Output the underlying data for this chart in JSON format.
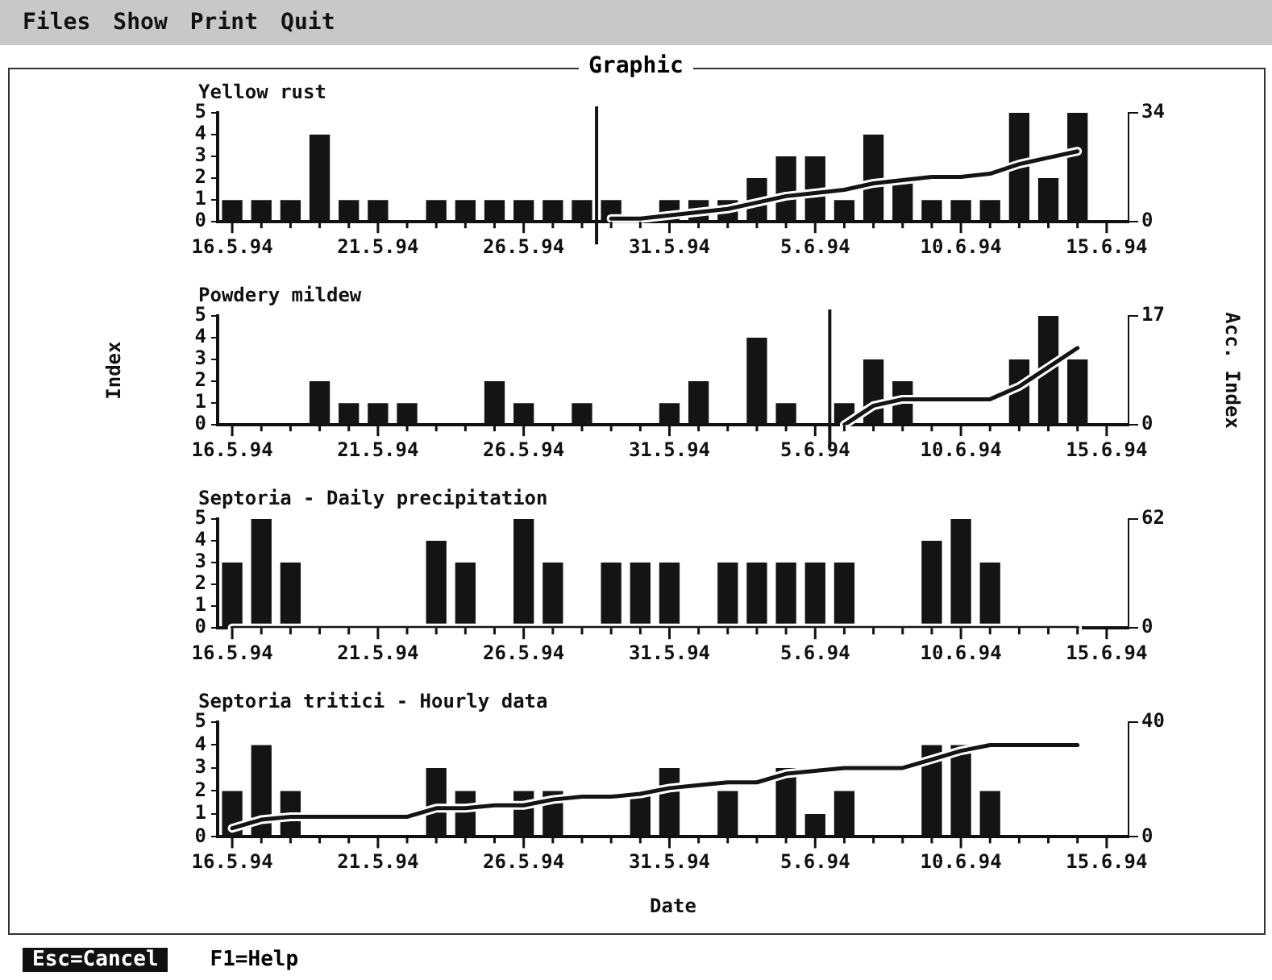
{
  "chart_data": [
    {
      "type": "bar",
      "title": "Yellow rust",
      "annotations": [
        "Files",
        "Show",
        "Print",
        "Quit",
        "Graphic"
      ],
      "x": [
        "1994-05-16",
        "1994-05-17",
        "1994-05-18",
        "1994-05-19",
        "1994-05-20",
        "1994-05-21",
        "1994-05-22",
        "1994-05-23",
        "1994-05-24",
        "1994-05-25",
        "1994-05-26",
        "1994-05-27",
        "1994-05-28",
        "1994-05-29",
        "1994-05-30",
        "1994-05-31",
        "1994-06-01",
        "1994-06-02",
        "1994-06-03",
        "1994-06-04",
        "1994-06-05",
        "1994-06-06",
        "1994-06-07",
        "1994-06-08",
        "1994-06-09",
        "1994-06-10",
        "1994-06-11",
        "1994-06-12",
        "1994-06-13",
        "1994-06-14",
        "1994-06-15"
      ],
      "series": [
        {
          "color": "#141414",
          "values": [
            1,
            1,
            1,
            4,
            1,
            1,
            0,
            1,
            1,
            1,
            1,
            1,
            1,
            1,
            0,
            1,
            1,
            1,
            2,
            3,
            3,
            1,
            4,
            2,
            1,
            1,
            1,
            5,
            2,
            5,
            0
          ]
        },
        {
          "type": "line",
          "axis": "y2",
          "color": "#141414",
          "values": [
            null,
            null,
            null,
            null,
            null,
            null,
            null,
            null,
            null,
            null,
            null,
            null,
            null,
            1,
            1,
            2,
            3,
            4,
            6,
            8,
            9,
            10,
            12,
            13,
            14,
            14,
            15,
            18,
            20,
            22,
            null
          ]
        }
      ],
      "xlim": [
        "1994-05-15T12:00",
        "1994-06-15T18:00"
      ],
      "xticks": [
        {
          "value": "1994-05-16",
          "label": "16.5.94"
        },
        {
          "value": "1994-05-17",
          "label": null
        },
        {
          "value": "1994-05-18",
          "label": null
        },
        {
          "value": "1994-05-19",
          "label": null
        },
        {
          "value": "1994-05-20",
          "label": null
        },
        {
          "value": "1994-05-21",
          "label": "21.5.94"
        },
        {
          "value": "1994-05-22",
          "label": null
        },
        {
          "value": "1994-05-23",
          "label": null
        },
        {
          "value": "1994-05-24",
          "label": null
        },
        {
          "value": "1994-05-25",
          "label": null
        },
        {
          "value": "1994-05-26",
          "label": "26.5.94"
        },
        {
          "value": "1994-05-27",
          "label": null
        },
        {
          "value": "1994-05-28",
          "label": null
        },
        {
          "value": "1994-05-29",
          "label": null
        },
        {
          "value": "1994-05-30",
          "label": null
        },
        {
          "value": "1994-05-31",
          "label": "31.5.94"
        },
        {
          "value": "1994-06-01",
          "label": null
        },
        {
          "value": "1994-06-02",
          "label": null
        },
        {
          "value": "1994-06-03",
          "label": null
        },
        {
          "value": "1994-06-04",
          "label": null
        },
        {
          "value": "1994-06-05",
          "label": "5.6.94"
        },
        {
          "value": "1994-06-06",
          "label": null
        },
        {
          "value": "1994-06-07",
          "label": null
        },
        {
          "value": "1994-06-08",
          "label": null
        },
        {
          "value": "1994-06-09",
          "label": null
        },
        {
          "value": "1994-06-10",
          "label": "10.6.94"
        },
        {
          "value": "1994-06-11",
          "label": null
        },
        {
          "value": "1994-06-12",
          "label": null
        },
        {
          "value": "1994-06-13",
          "label": null
        },
        {
          "value": "1994-06-14",
          "label": null
        },
        {
          "value": "1994-06-15",
          "label": "15.6.94"
        }
      ],
      "ylim": [
        0,
        5
      ],
      "yticks": [
        0,
        1,
        2,
        3,
        4,
        5
      ],
      "y2lim": [
        0,
        34
      ],
      "y2ticks": [
        0,
        34
      ],
      "ref_lines": [
        {
          "axis": "x",
          "value": "1994-05-28T12:00",
          "color": "#141414"
        }
      ],
      "grid": false,
      "legend": false,
      "marker": "none"
    },
    {
      "type": "bar",
      "title": "Powdery mildew",
      "ylabel": "Index",
      "y2label": "Acc. Index",
      "x": [
        "1994-05-16",
        "1994-05-17",
        "1994-05-18",
        "1994-05-19",
        "1994-05-20",
        "1994-05-21",
        "1994-05-22",
        "1994-05-23",
        "1994-05-24",
        "1994-05-25",
        "1994-05-26",
        "1994-05-27",
        "1994-05-28",
        "1994-05-29",
        "1994-05-30",
        "1994-05-31",
        "1994-06-01",
        "1994-06-02",
        "1994-06-03",
        "1994-06-04",
        "1994-06-05",
        "1994-06-06",
        "1994-06-07",
        "1994-06-08",
        "1994-06-09",
        "1994-06-10",
        "1994-06-11",
        "1994-06-12",
        "1994-06-13",
        "1994-06-14",
        "1994-06-15"
      ],
      "series": [
        {
          "color": "#141414",
          "values": [
            0,
            0,
            0,
            2,
            1,
            1,
            1,
            0,
            0,
            2,
            1,
            0,
            1,
            0,
            0,
            1,
            2,
            0,
            4,
            1,
            0,
            1,
            3,
            2,
            0,
            0,
            0,
            3,
            5,
            3,
            0
          ]
        },
        {
          "type": "line",
          "axis": "y2",
          "color": "#141414",
          "values": [
            null,
            null,
            null,
            null,
            null,
            null,
            null,
            null,
            null,
            null,
            null,
            null,
            null,
            null,
            null,
            null,
            null,
            null,
            null,
            null,
            null,
            0,
            3,
            4,
            4,
            4,
            4,
            6,
            9,
            12,
            null
          ]
        }
      ],
      "xlim": [
        "1994-05-15T12:00",
        "1994-06-15T18:00"
      ],
      "xticks": [
        {
          "value": "1994-05-16",
          "label": "16.5.94"
        },
        {
          "value": "1994-05-17",
          "label": null
        },
        {
          "value": "1994-05-18",
          "label": null
        },
        {
          "value": "1994-05-19",
          "label": null
        },
        {
          "value": "1994-05-20",
          "label": null
        },
        {
          "value": "1994-05-21",
          "label": "21.5.94"
        },
        {
          "value": "1994-05-22",
          "label": null
        },
        {
          "value": "1994-05-23",
          "label": null
        },
        {
          "value": "1994-05-24",
          "label": null
        },
        {
          "value": "1994-05-25",
          "label": null
        },
        {
          "value": "1994-05-26",
          "label": "26.5.94"
        },
        {
          "value": "1994-05-27",
          "label": null
        },
        {
          "value": "1994-05-28",
          "label": null
        },
        {
          "value": "1994-05-29",
          "label": null
        },
        {
          "value": "1994-05-30",
          "label": null
        },
        {
          "value": "1994-05-31",
          "label": "31.5.94"
        },
        {
          "value": "1994-06-01",
          "label": null
        },
        {
          "value": "1994-06-02",
          "label": null
        },
        {
          "value": "1994-06-03",
          "label": null
        },
        {
          "value": "1994-06-04",
          "label": null
        },
        {
          "value": "1994-06-05",
          "label": "5.6.94"
        },
        {
          "value": "1994-06-06",
          "label": null
        },
        {
          "value": "1994-06-07",
          "label": null
        },
        {
          "value": "1994-06-08",
          "label": null
        },
        {
          "value": "1994-06-09",
          "label": null
        },
        {
          "value": "1994-06-10",
          "label": "10.6.94"
        },
        {
          "value": "1994-06-11",
          "label": null
        },
        {
          "value": "1994-06-12",
          "label": null
        },
        {
          "value": "1994-06-13",
          "label": null
        },
        {
          "value": "1994-06-14",
          "label": null
        },
        {
          "value": "1994-06-15",
          "label": "15.6.94"
        }
      ],
      "ylim": [
        0,
        5
      ],
      "yticks": [
        0,
        1,
        2,
        3,
        4,
        5
      ],
      "y2lim": [
        0,
        17
      ],
      "y2ticks": [
        0,
        17
      ],
      "ref_lines": [
        {
          "axis": "x",
          "value": "1994-06-05T12:00",
          "color": "#141414"
        }
      ],
      "grid": false,
      "legend": false,
      "marker": "none"
    },
    {
      "type": "bar",
      "title": "Septoria - Daily precipitation",
      "x": [
        "1994-05-16",
        "1994-05-17",
        "1994-05-18",
        "1994-05-19",
        "1994-05-20",
        "1994-05-21",
        "1994-05-22",
        "1994-05-23",
        "1994-05-24",
        "1994-05-25",
        "1994-05-26",
        "1994-05-27",
        "1994-05-28",
        "1994-05-29",
        "1994-05-30",
        "1994-05-31",
        "1994-06-01",
        "1994-06-02",
        "1994-06-03",
        "1994-06-04",
        "1994-06-05",
        "1994-06-06",
        "1994-06-07",
        "1994-06-08",
        "1994-06-09",
        "1994-06-10",
        "1994-06-11",
        "1994-06-12",
        "1994-06-13",
        "1994-06-14",
        "1994-06-15"
      ],
      "series": [
        {
          "color": "#141414",
          "values": [
            3,
            5,
            3,
            0,
            0,
            0,
            0,
            4,
            3,
            0,
            5,
            3,
            0,
            3,
            3,
            3,
            0,
            3,
            3,
            3,
            3,
            3,
            0,
            0,
            4,
            5,
            3,
            0,
            0,
            0,
            0
          ]
        },
        {
          "type": "line",
          "axis": "y2",
          "color": "#141414",
          "values": [
            0,
            0,
            0,
            0,
            0,
            0,
            0,
            0,
            0,
            0,
            0,
            0,
            0,
            0,
            0,
            0,
            0,
            0,
            0,
            0,
            0,
            0,
            0,
            0,
            0,
            0,
            0,
            0,
            0,
            0,
            null
          ]
        }
      ],
      "xlim": [
        "1994-05-15T12:00",
        "1994-06-15T18:00"
      ],
      "xticks": [
        {
          "value": "1994-05-16",
          "label": "16.5.94"
        },
        {
          "value": "1994-05-17",
          "label": null
        },
        {
          "value": "1994-05-18",
          "label": null
        },
        {
          "value": "1994-05-19",
          "label": null
        },
        {
          "value": "1994-05-20",
          "label": null
        },
        {
          "value": "1994-05-21",
          "label": "21.5.94"
        },
        {
          "value": "1994-05-22",
          "label": null
        },
        {
          "value": "1994-05-23",
          "label": null
        },
        {
          "value": "1994-05-24",
          "label": null
        },
        {
          "value": "1994-05-25",
          "label": null
        },
        {
          "value": "1994-05-26",
          "label": "26.5.94"
        },
        {
          "value": "1994-05-27",
          "label": null
        },
        {
          "value": "1994-05-28",
          "label": null
        },
        {
          "value": "1994-05-29",
          "label": null
        },
        {
          "value": "1994-05-30",
          "label": null
        },
        {
          "value": "1994-05-31",
          "label": "31.5.94"
        },
        {
          "value": "1994-06-01",
          "label": null
        },
        {
          "value": "1994-06-02",
          "label": null
        },
        {
          "value": "1994-06-03",
          "label": null
        },
        {
          "value": "1994-06-04",
          "label": null
        },
        {
          "value": "1994-06-05",
          "label": "5.6.94"
        },
        {
          "value": "1994-06-06",
          "label": null
        },
        {
          "value": "1994-06-07",
          "label": null
        },
        {
          "value": "1994-06-08",
          "label": null
        },
        {
          "value": "1994-06-09",
          "label": null
        },
        {
          "value": "1994-06-10",
          "label": "10.6.94"
        },
        {
          "value": "1994-06-11",
          "label": null
        },
        {
          "value": "1994-06-12",
          "label": null
        },
        {
          "value": "1994-06-13",
          "label": null
        },
        {
          "value": "1994-06-14",
          "label": null
        },
        {
          "value": "1994-06-15",
          "label": "15.6.94"
        }
      ],
      "ylim": [
        0,
        5
      ],
      "yticks": [
        0,
        1,
        2,
        3,
        4,
        5
      ],
      "y2lim": [
        0,
        62
      ],
      "y2ticks": [
        0,
        62
      ],
      "grid": false,
      "legend": false,
      "marker": "none"
    },
    {
      "type": "bar",
      "title": "Septoria tritici - Hourly data",
      "xlabel": "Date",
      "annotations": [
        "Esc=Cancel",
        "F1=Help"
      ],
      "x": [
        "1994-05-16",
        "1994-05-17",
        "1994-05-18",
        "1994-05-19",
        "1994-05-20",
        "1994-05-21",
        "1994-05-22",
        "1994-05-23",
        "1994-05-24",
        "1994-05-25",
        "1994-05-26",
        "1994-05-27",
        "1994-05-28",
        "1994-05-29",
        "1994-05-30",
        "1994-05-31",
        "1994-06-01",
        "1994-06-02",
        "1994-06-03",
        "1994-06-04",
        "1994-06-05",
        "1994-06-06",
        "1994-06-07",
        "1994-06-08",
        "1994-06-09",
        "1994-06-10",
        "1994-06-11",
        "1994-06-12",
        "1994-06-13",
        "1994-06-14",
        "1994-06-15"
      ],
      "series": [
        {
          "color": "#141414",
          "values": [
            2,
            4,
            2,
            0,
            0,
            0,
            0,
            3,
            2,
            0,
            2,
            2,
            0,
            0,
            2,
            3,
            0,
            2,
            0,
            3,
            1,
            2,
            0,
            0,
            4,
            4,
            2,
            0,
            0,
            0,
            0
          ]
        },
        {
          "type": "line",
          "axis": "y2",
          "color": "#141414",
          "values": [
            3,
            6,
            7,
            7,
            7,
            7,
            7,
            10,
            10,
            11,
            11,
            13,
            14,
            14,
            15,
            17,
            18,
            19,
            19,
            22,
            23,
            24,
            24,
            24,
            27,
            30,
            32,
            32,
            32,
            32,
            null
          ]
        }
      ],
      "xlim": [
        "1994-05-15T12:00",
        "1994-06-15T18:00"
      ],
      "xticks": [
        {
          "value": "1994-05-16",
          "label": "16.5.94"
        },
        {
          "value": "1994-05-17",
          "label": null
        },
        {
          "value": "1994-05-18",
          "label": null
        },
        {
          "value": "1994-05-19",
          "label": null
        },
        {
          "value": "1994-05-20",
          "label": null
        },
        {
          "value": "1994-05-21",
          "label": "21.5.94"
        },
        {
          "value": "1994-05-22",
          "label": null
        },
        {
          "value": "1994-05-23",
          "label": null
        },
        {
          "value": "1994-05-24",
          "label": null
        },
        {
          "value": "1994-05-25",
          "label": null
        },
        {
          "value": "1994-05-26",
          "label": "26.5.94"
        },
        {
          "value": "1994-05-27",
          "label": null
        },
        {
          "value": "1994-05-28",
          "label": null
        },
        {
          "value": "1994-05-29",
          "label": null
        },
        {
          "value": "1994-05-30",
          "label": null
        },
        {
          "value": "1994-05-31",
          "label": "31.5.94"
        },
        {
          "value": "1994-06-01",
          "label": null
        },
        {
          "value": "1994-06-02",
          "label": null
        },
        {
          "value": "1994-06-03",
          "label": null
        },
        {
          "value": "1994-06-04",
          "label": null
        },
        {
          "value": "1994-06-05",
          "label": "5.6.94"
        },
        {
          "value": "1994-06-06",
          "label": null
        },
        {
          "value": "1994-06-07",
          "label": null
        },
        {
          "value": "1994-06-08",
          "label": null
        },
        {
          "value": "1994-06-09",
          "label": null
        },
        {
          "value": "1994-06-10",
          "label": "10.6.94"
        },
        {
          "value": "1994-06-11",
          "label": null
        },
        {
          "value": "1994-06-12",
          "label": null
        },
        {
          "value": "1994-06-13",
          "label": null
        },
        {
          "value": "1994-06-14",
          "label": null
        },
        {
          "value": "1994-06-15",
          "label": "15.6.94"
        }
      ],
      "ylim": [
        0,
        5
      ],
      "yticks": [
        0,
        1,
        2,
        3,
        4,
        5
      ],
      "y2lim": [
        0,
        40
      ],
      "y2ticks": [
        0,
        40
      ],
      "grid": false,
      "legend": false,
      "marker": "none"
    }
  ]
}
